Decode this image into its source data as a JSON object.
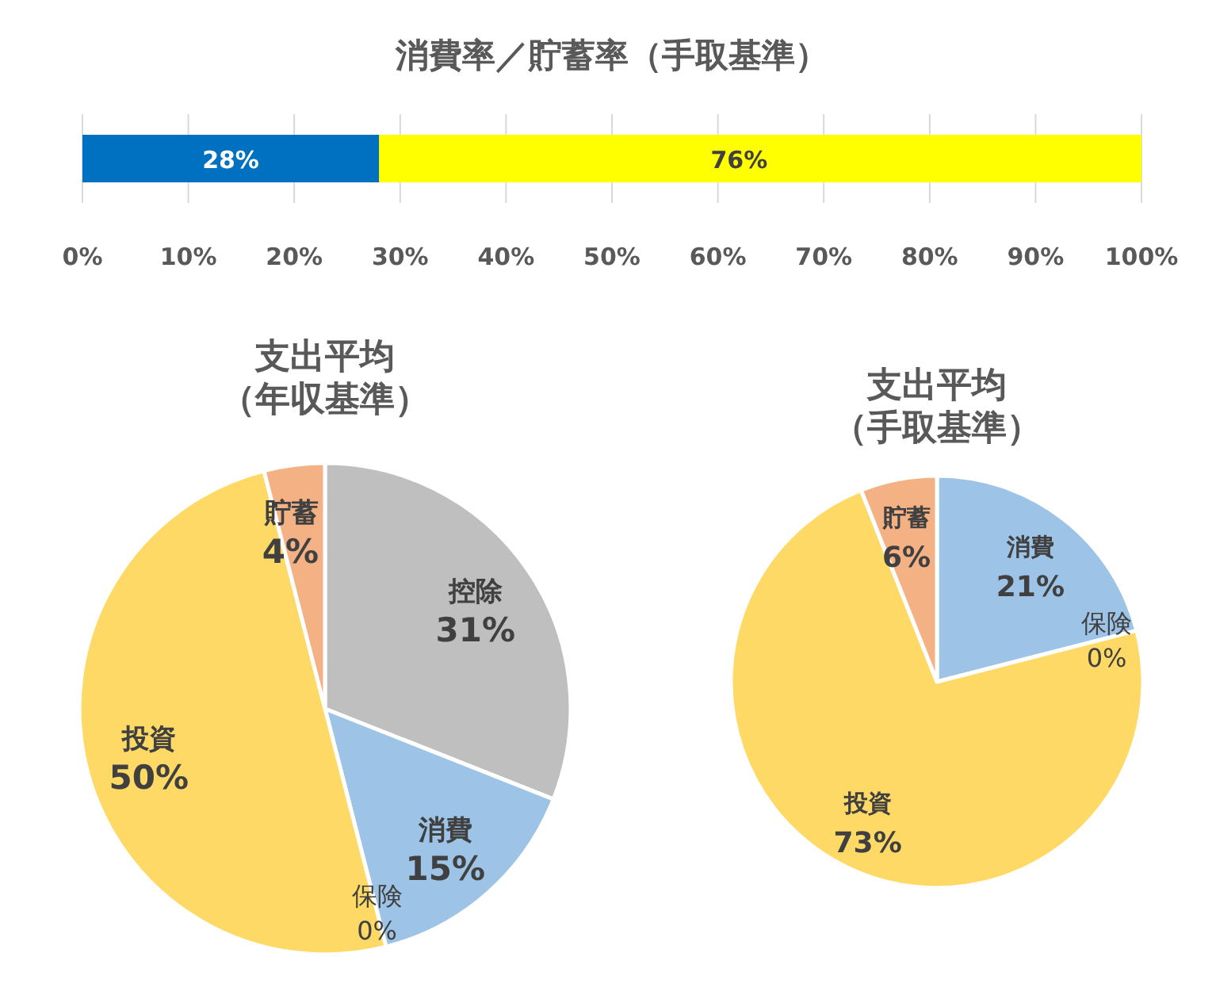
{
  "chart_data": [
    {
      "type": "bar",
      "title": "消費率／貯蓄率（手取基準）",
      "orientation": "horizontal",
      "categories": [
        null
      ],
      "grid": "x",
      "tick_labels": "x",
      "xlim": [
        0,
        100
      ],
      "xticks": [
        {
          "value": 0,
          "label": "0%"
        },
        {
          "value": 10,
          "label": "10%"
        },
        {
          "value": 20,
          "label": "20%"
        },
        {
          "value": 30,
          "label": "30%"
        },
        {
          "value": 40,
          "label": "40%"
        },
        {
          "value": 50,
          "label": "50%"
        },
        {
          "value": 60,
          "label": "60%"
        },
        {
          "value": 70,
          "label": "70%"
        },
        {
          "value": 80,
          "label": "80%"
        },
        {
          "value": 90,
          "label": "90%"
        },
        {
          "value": 100,
          "label": "100%"
        }
      ],
      "series": [
        {
          "color": "#ffff00",
          "values": [
            76
          ],
          "base": [
            24
          ],
          "value_labels": [
            "76%"
          ]
        },
        {
          "color": "#0070c0",
          "values": [
            28
          ],
          "base": [
            0
          ],
          "value_labels": [
            "28%"
          ]
        }
      ]
    },
    {
      "type": "pie",
      "title": "支出平均（年収基準）",
      "categories": [
        "控除",
        "消費",
        "保険",
        "投資",
        "貯蓄"
      ],
      "values": [
        31,
        15,
        0,
        50,
        4
      ],
      "colors": [
        "#bfbfbf",
        "#9dc3e6",
        "#5b9bd5",
        "#ffd966",
        "#f4b183"
      ],
      "value_labels": [
        "31%",
        "15%",
        "0%",
        "50%",
        "4%"
      ]
    },
    {
      "type": "pie",
      "title": "支出平均（手取基準）",
      "categories": [
        "消費",
        "保険",
        "投資",
        "貯蓄"
      ],
      "values": [
        21,
        0,
        73,
        6
      ],
      "colors": [
        "#9dc3e6",
        "#5b9bd5",
        "#ffd966",
        "#f4b183"
      ],
      "value_labels": [
        "21%",
        "0%",
        "73%",
        "6%"
      ]
    }
  ]
}
